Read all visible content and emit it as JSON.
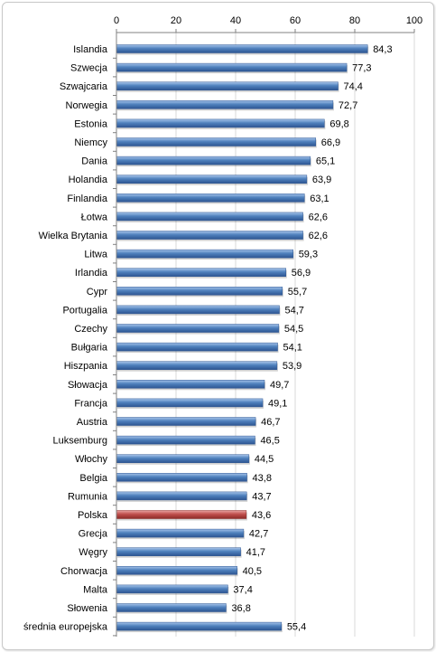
{
  "chart_data": {
    "type": "bar",
    "orientation": "horizontal",
    "title": "",
    "xlabel": "",
    "ylabel": "",
    "xlim": [
      0,
      100
    ],
    "ticks": [
      0,
      20,
      40,
      60,
      80,
      100
    ],
    "grid": true,
    "categories": [
      "Islandia",
      "Szwecja",
      "Szwajcaria",
      "Norwegia",
      "Estonia",
      "Niemcy",
      "Dania",
      "Holandia",
      "Finlandia",
      "Łotwa",
      "Wielka Brytania",
      "Litwa",
      "Irlandia",
      "Cypr",
      "Portugalia",
      "Czechy",
      "Bułgaria",
      "Hiszpania",
      "Słowacja",
      "Francja",
      "Austria",
      "Luksemburg",
      "Włochy",
      "Belgia",
      "Rumunia",
      "Polska",
      "Grecja",
      "Węgry",
      "Chorwacja",
      "Malta",
      "Słowenia",
      "średnia europejska"
    ],
    "values": [
      84.3,
      77.3,
      74.4,
      72.7,
      69.8,
      66.9,
      65.1,
      63.9,
      63.1,
      62.6,
      62.6,
      59.3,
      56.9,
      55.7,
      54.7,
      54.5,
      54.1,
      53.9,
      49.7,
      49.1,
      46.7,
      46.5,
      44.5,
      43.8,
      43.7,
      43.6,
      42.7,
      41.7,
      40.5,
      37.4,
      36.8,
      55.4
    ],
    "value_labels": [
      "84,3",
      "77,3",
      "74,4",
      "72,7",
      "69,8",
      "66,9",
      "65,1",
      "63,9",
      "63,1",
      "62,6",
      "62,6",
      "59,3",
      "56,9",
      "55,7",
      "54,7",
      "54,5",
      "54,1",
      "53,9",
      "49,7",
      "49,1",
      "46,7",
      "46,5",
      "44,5",
      "43,8",
      "43,7",
      "43,6",
      "42,7",
      "41,7",
      "40,5",
      "37,4",
      "36,8",
      "55,4"
    ],
    "highlight": "Polska",
    "colors": {
      "bar": "#4f81bd",
      "bar_light": "#a7c4ea",
      "bar_dark": "#2d5592",
      "highlight": "#c0504d",
      "highlight_light": "#e8a3a1",
      "highlight_dark": "#8c2a27",
      "grid": "#d9d9d9",
      "axis": "#808080"
    }
  }
}
